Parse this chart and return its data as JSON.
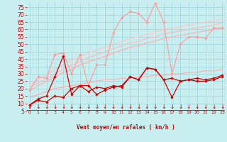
{
  "x": [
    0,
    1,
    2,
    3,
    4,
    5,
    6,
    7,
    8,
    9,
    10,
    11,
    12,
    13,
    14,
    15,
    16,
    17,
    18,
    19,
    20,
    21,
    22,
    23
  ],
  "background_color": "#c8eef0",
  "grid_color": "#a0d8e0",
  "xlabel": "Vent moyen/en rafales ( km/h )",
  "xlabel_color": "#cc0000",
  "tick_color": "#cc0000",
  "ylim": [
    5,
    78
  ],
  "yticks": [
    5,
    10,
    15,
    20,
    25,
    30,
    35,
    40,
    45,
    50,
    55,
    60,
    65,
    70,
    75
  ],
  "line_color_light": "#ff9999",
  "line_color_dark": "#cc0000",
  "trend_color1": "#ffb0b0",
  "trend_color2": "#ffbcbc",
  "trend_color3": "#ffc8c8",
  "series_light": [
    19,
    28,
    27,
    43,
    44,
    30,
    43,
    22,
    36,
    36,
    58,
    68,
    72,
    71,
    65,
    78,
    65,
    30,
    50,
    55,
    55,
    54,
    61,
    61
  ],
  "series_dark1": [
    9,
    12,
    11,
    15,
    14,
    20,
    22,
    18,
    21,
    20,
    22,
    21,
    28,
    26,
    34,
    33,
    26,
    27,
    25,
    26,
    27,
    26,
    27,
    29
  ],
  "series_dark2": [
    9,
    13,
    15,
    28,
    42,
    16,
    22,
    22,
    16,
    19,
    21,
    22,
    28,
    26,
    34,
    33,
    26,
    14,
    25,
    26,
    25,
    25,
    26,
    28
  ],
  "trend1": [
    19,
    22,
    25,
    28,
    31,
    33,
    36,
    38,
    40,
    42,
    44,
    46,
    48,
    49,
    51,
    52,
    54,
    55,
    56,
    57,
    58,
    59,
    60,
    61
  ],
  "trend2": [
    21,
    24,
    27,
    30,
    33,
    36,
    38,
    41,
    43,
    45,
    47,
    49,
    51,
    52,
    54,
    55,
    57,
    58,
    59,
    60,
    61,
    62,
    63,
    64
  ],
  "trend3": [
    23,
    26,
    29,
    33,
    36,
    39,
    41,
    44,
    46,
    48,
    50,
    52,
    54,
    55,
    57,
    58,
    60,
    61,
    62,
    63,
    64,
    65,
    66,
    67
  ],
  "trend4": [
    14,
    16,
    18,
    20,
    21,
    22,
    23,
    24,
    25,
    26,
    26,
    27,
    27,
    28,
    28,
    29,
    29,
    30,
    30,
    31,
    31,
    32,
    32,
    33
  ]
}
